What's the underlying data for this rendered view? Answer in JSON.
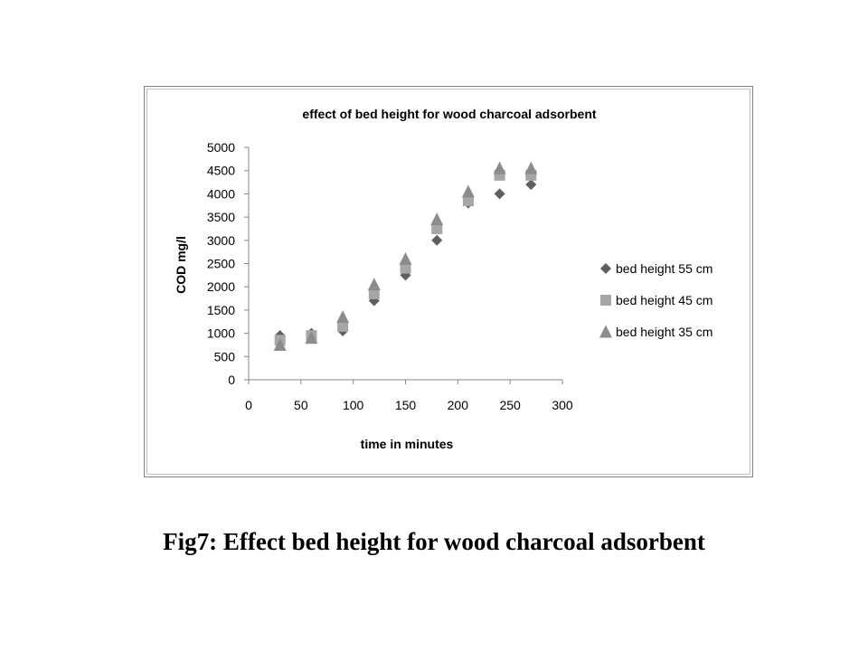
{
  "caption": "Fig7: Effect bed height for wood charcoal adsorbent",
  "chart_data": {
    "type": "scatter",
    "title": "effect of bed height for wood charcoal adsorbent",
    "xlabel": "time in minutes",
    "ylabel": "COD mg/l",
    "xlim": [
      0,
      300
    ],
    "ylim": [
      0,
      5000
    ],
    "xticks": [
      0,
      50,
      100,
      150,
      200,
      250,
      300
    ],
    "yticks": [
      0,
      500,
      1000,
      1500,
      2000,
      2500,
      3000,
      3500,
      4000,
      4500,
      5000
    ],
    "grid": false,
    "legend_position": "right",
    "series": [
      {
        "name": "bed height 55 cm",
        "marker": "diamond",
        "color": "#5f5f5f",
        "x": [
          30,
          60,
          90,
          120,
          150,
          180,
          210,
          240,
          270
        ],
        "y": [
          950,
          1000,
          1050,
          1700,
          2250,
          3000,
          3800,
          4000,
          4200
        ]
      },
      {
        "name": "bed height 45 cm",
        "marker": "square",
        "color": "#a6a6a6",
        "x": [
          30,
          60,
          90,
          120,
          150,
          180,
          210,
          240,
          270
        ],
        "y": [
          850,
          950,
          1150,
          1850,
          2400,
          3250,
          3850,
          4400,
          4400
        ]
      },
      {
        "name": "bed height 35 cm",
        "marker": "triangle",
        "color": "#8c8c8c",
        "x": [
          30,
          60,
          90,
          120,
          150,
          180,
          210,
          240,
          270
        ],
        "y": [
          750,
          900,
          1350,
          2050,
          2600,
          3450,
          4050,
          4550,
          4550
        ]
      }
    ]
  }
}
